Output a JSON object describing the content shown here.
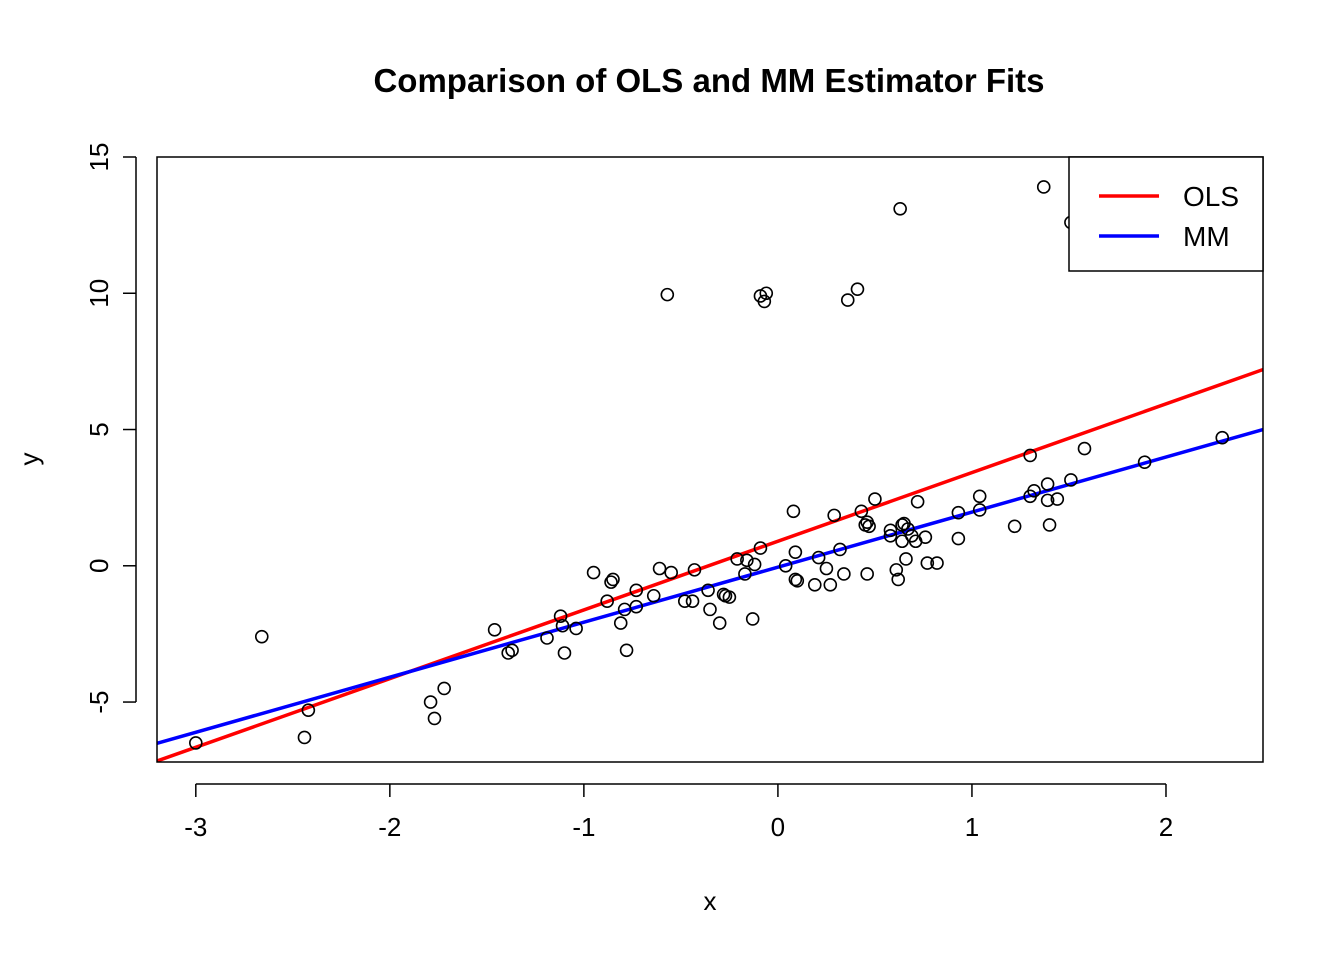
{
  "chart_data": {
    "type": "scatter",
    "title": "Comparison of OLS and MM Estimator Fits",
    "xlabel": "x",
    "ylabel": "y",
    "xlim": [
      -3.2,
      2.5
    ],
    "ylim": [
      -7.2,
      15
    ],
    "xticks": [
      -3,
      -2,
      -1,
      0,
      1,
      2
    ],
    "yticks": [
      -5,
      0,
      5,
      10,
      15
    ],
    "grid": false,
    "legend_position": "top-right",
    "points": {
      "marker": "open-circle",
      "color": "#000000",
      "x": [
        -3.0,
        -2.66,
        -2.44,
        -2.42,
        -1.79,
        -1.77,
        -1.72,
        -1.46,
        -1.39,
        -1.37,
        -1.19,
        -1.12,
        -1.11,
        -1.1,
        -1.04,
        -0.95,
        -0.88,
        -0.86,
        -0.85,
        -0.81,
        -0.79,
        -0.78,
        -0.73,
        -0.73,
        -0.64,
        -0.61,
        -0.57,
        -0.55,
        -0.48,
        -0.44,
        -0.43,
        -0.36,
        -0.35,
        -0.3,
        -0.28,
        -0.27,
        -0.25,
        -0.21,
        -0.17,
        -0.16,
        -0.13,
        -0.12,
        -0.09,
        -0.07,
        -0.09,
        -0.06,
        0.04,
        0.08,
        0.09,
        0.09,
        0.1,
        0.19,
        0.21,
        0.25,
        0.27,
        0.29,
        0.32,
        0.34,
        0.36,
        0.41,
        0.43,
        0.45,
        0.46,
        0.46,
        0.47,
        0.5,
        0.58,
        0.58,
        0.61,
        0.62,
        0.63,
        0.64,
        0.64,
        0.65,
        0.66,
        0.67,
        0.69,
        0.71,
        0.72,
        0.76,
        0.77,
        0.82,
        0.93,
        0.93,
        1.04,
        1.04,
        1.22,
        1.3,
        1.3,
        1.32,
        1.37,
        1.39,
        1.39,
        1.4,
        1.44,
        1.51,
        1.58,
        1.89,
        2.29,
        1.51
      ],
      "y": [
        -6.5,
        -2.6,
        -6.3,
        -5.3,
        -5.0,
        -5.6,
        -4.5,
        -2.35,
        -3.2,
        -3.1,
        -2.65,
        -1.85,
        -2.2,
        -3.2,
        -2.3,
        -0.25,
        -1.3,
        -0.6,
        -0.5,
        -2.1,
        -1.6,
        -3.1,
        -1.5,
        -0.9,
        -1.1,
        -0.1,
        9.95,
        -0.25,
        -1.3,
        -1.3,
        -0.15,
        -0.9,
        -1.6,
        -2.1,
        -1.05,
        -1.1,
        -1.15,
        0.25,
        -0.3,
        0.2,
        -1.95,
        0.05,
        9.9,
        9.7,
        0.65,
        10.0,
        0.0,
        2.0,
        0.5,
        -0.5,
        -0.55,
        -0.7,
        0.3,
        -0.1,
        -0.7,
        1.85,
        0.6,
        -0.3,
        9.75,
        10.15,
        2.0,
        1.5,
        1.6,
        -0.3,
        1.45,
        2.45,
        1.1,
        1.3,
        -0.15,
        -0.5,
        13.1,
        0.9,
        1.5,
        1.55,
        0.25,
        1.35,
        1.1,
        0.9,
        2.35,
        1.05,
        0.1,
        0.1,
        1.95,
        1.0,
        2.05,
        2.55,
        1.45,
        2.55,
        4.05,
        2.75,
        13.9,
        3.0,
        2.4,
        1.5,
        2.45,
        3.15,
        4.3,
        3.8,
        4.7,
        12.6
      ]
    },
    "series": [
      {
        "name": "OLS",
        "type": "line",
        "color": "#ff0000",
        "intercept": 0.9,
        "slope": 2.52
      },
      {
        "name": "MM",
        "type": "line",
        "color": "#0000ff",
        "intercept": -0.05,
        "slope": 2.02
      }
    ]
  }
}
